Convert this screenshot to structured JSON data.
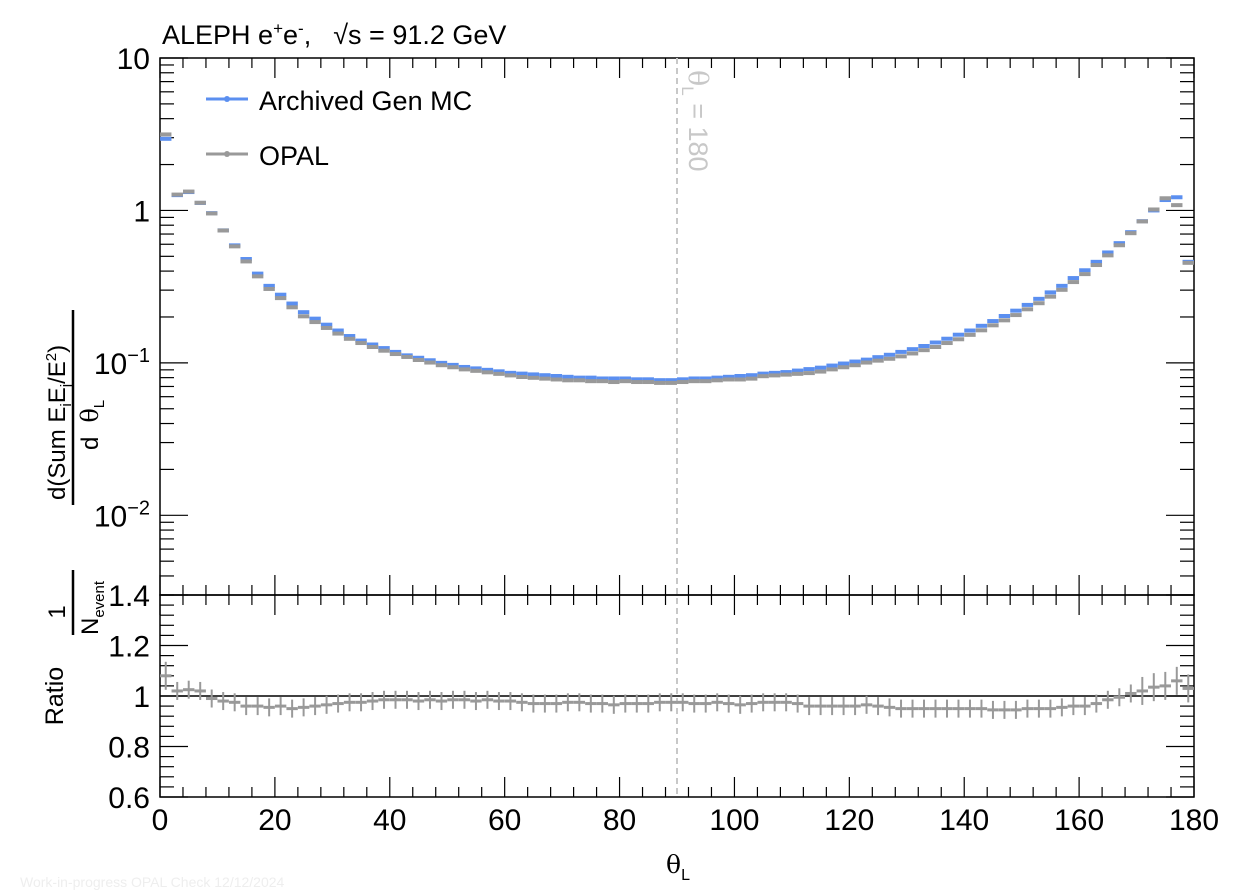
{
  "chart_data": {
    "type": "scatter",
    "title": "ALEPH e⁺e⁻,   √s = 91.2 GeV",
    "title_parts": {
      "experiment": "ALEPH e",
      "plus": "+",
      "e": "e",
      "minus": "-",
      "comma": ",",
      "sqrt": "√",
      "s_eq": "s = 91.2 GeV"
    },
    "xlabel": "θ",
    "xlabel_sub": "L",
    "ylabel_parts": {
      "one": "1",
      "nevent": "N",
      "nevent_sub": "event",
      "numer": "d(Sum E",
      "numer_i": "i",
      "numer_E": "E",
      "numer_j": "j",
      "numer_tail": "/E",
      "numer_sup": "2",
      "numer_close": ")",
      "denom_d": "d",
      "denom_theta": "θ",
      "denom_sub": "L"
    },
    "ratio_ylabel": "Ratio",
    "xlim": [
      0,
      180
    ],
    "ylim": [
      0.003,
      10
    ],
    "ratio_ylim": [
      0.6,
      1.4
    ],
    "x_ticks": [
      "0",
      "20",
      "40",
      "60",
      "80",
      "100",
      "120",
      "140",
      "160",
      "180"
    ],
    "y_ticks": [
      {
        "base": "10",
        "exp": "",
        "value": 10
      },
      {
        "base": "1",
        "exp": "",
        "value": 1
      },
      {
        "base": "10",
        "exp": "−1",
        "value": 0.1
      },
      {
        "base": "10",
        "exp": "−2",
        "value": 0.01
      }
    ],
    "ratio_ticks": [
      "1.4",
      "1.2",
      "1",
      "0.8",
      "0.6"
    ],
    "vline": {
      "x": 90,
      "label": "θ",
      "label_sub": "L",
      "label_tail": " = 180"
    },
    "legend": [
      {
        "name": "Archived Gen MC",
        "color": "#5b8ff0"
      },
      {
        "name": "OPAL",
        "color": "#999999"
      }
    ],
    "x": [
      1,
      3,
      5,
      7,
      9,
      11,
      13,
      15,
      17,
      19,
      21,
      23,
      25,
      27,
      29,
      31,
      33,
      35,
      37,
      39,
      41,
      43,
      45,
      47,
      49,
      51,
      53,
      55,
      57,
      59,
      61,
      63,
      65,
      67,
      69,
      71,
      73,
      75,
      77,
      79,
      81,
      83,
      85,
      87,
      89,
      91,
      93,
      95,
      97,
      99,
      101,
      103,
      105,
      107,
      109,
      111,
      113,
      115,
      117,
      119,
      121,
      123,
      125,
      127,
      129,
      131,
      133,
      135,
      137,
      139,
      141,
      143,
      145,
      147,
      149,
      151,
      153,
      155,
      157,
      159,
      161,
      163,
      165,
      167,
      169,
      171,
      173,
      175,
      177,
      179
    ],
    "series": [
      {
        "name": "Archived Gen MC",
        "color": "#5b8ff0",
        "values": [
          2.95,
          1.26,
          1.32,
          1.12,
          0.96,
          0.74,
          0.59,
          0.48,
          0.385,
          0.32,
          0.28,
          0.245,
          0.215,
          0.195,
          0.178,
          0.163,
          0.15,
          0.14,
          0.132,
          0.125,
          0.118,
          0.112,
          0.108,
          0.104,
          0.1,
          0.097,
          0.094,
          0.092,
          0.09,
          0.088,
          0.086,
          0.085,
          0.084,
          0.083,
          0.082,
          0.081,
          0.08,
          0.08,
          0.079,
          0.079,
          0.079,
          0.078,
          0.078,
          0.077,
          0.077,
          0.078,
          0.079,
          0.079,
          0.08,
          0.081,
          0.082,
          0.083,
          0.085,
          0.086,
          0.087,
          0.089,
          0.091,
          0.093,
          0.096,
          0.099,
          0.102,
          0.105,
          0.109,
          0.113,
          0.118,
          0.123,
          0.129,
          0.136,
          0.144,
          0.153,
          0.163,
          0.175,
          0.188,
          0.203,
          0.22,
          0.24,
          0.263,
          0.29,
          0.32,
          0.36,
          0.405,
          0.46,
          0.53,
          0.61,
          0.72,
          0.85,
          1.0,
          1.17,
          1.22,
          0.46
        ]
      },
      {
        "name": "OPAL",
        "color": "#999999",
        "values": [
          3.2,
          1.29,
          1.35,
          1.14,
          0.97,
          0.75,
          0.59,
          0.47,
          0.375,
          0.31,
          0.27,
          0.235,
          0.205,
          0.188,
          0.172,
          0.158,
          0.146,
          0.137,
          0.129,
          0.122,
          0.116,
          0.111,
          0.106,
          0.102,
          0.098,
          0.095,
          0.092,
          0.09,
          0.088,
          0.086,
          0.084,
          0.082,
          0.081,
          0.08,
          0.079,
          0.078,
          0.078,
          0.077,
          0.077,
          0.076,
          0.077,
          0.076,
          0.076,
          0.075,
          0.075,
          0.076,
          0.077,
          0.077,
          0.078,
          0.079,
          0.079,
          0.08,
          0.083,
          0.084,
          0.085,
          0.086,
          0.087,
          0.089,
          0.092,
          0.095,
          0.098,
          0.102,
          0.105,
          0.108,
          0.112,
          0.117,
          0.123,
          0.129,
          0.137,
          0.145,
          0.155,
          0.166,
          0.179,
          0.193,
          0.209,
          0.228,
          0.25,
          0.276,
          0.306,
          0.344,
          0.388,
          0.445,
          0.515,
          0.6,
          0.72,
          0.86,
          1.03,
          1.22,
          1.1,
          0.46
        ]
      }
    ],
    "ratio": [
      1.08,
      1.02,
      1.025,
      1.02,
      0.99,
      0.98,
      0.975,
      0.96,
      0.96,
      0.955,
      0.96,
      0.95,
      0.955,
      0.96,
      0.965,
      0.97,
      0.975,
      0.975,
      0.98,
      0.985,
      0.985,
      0.985,
      0.98,
      0.985,
      0.98,
      0.985,
      0.985,
      0.98,
      0.985,
      0.98,
      0.98,
      0.975,
      0.97,
      0.97,
      0.97,
      0.975,
      0.975,
      0.97,
      0.97,
      0.965,
      0.97,
      0.97,
      0.97,
      0.975,
      0.975,
      0.975,
      0.97,
      0.97,
      0.975,
      0.97,
      0.965,
      0.97,
      0.975,
      0.975,
      0.975,
      0.97,
      0.96,
      0.96,
      0.96,
      0.96,
      0.96,
      0.965,
      0.96,
      0.955,
      0.95,
      0.95,
      0.95,
      0.95,
      0.95,
      0.95,
      0.95,
      0.95,
      0.945,
      0.945,
      0.945,
      0.95,
      0.95,
      0.95,
      0.955,
      0.96,
      0.96,
      0.97,
      0.985,
      0.995,
      1.01,
      1.02,
      1.035,
      1.04,
      1.06,
      1.03
    ]
  },
  "watermark": "Work-in-progress OPAL Check 12/12/2024"
}
